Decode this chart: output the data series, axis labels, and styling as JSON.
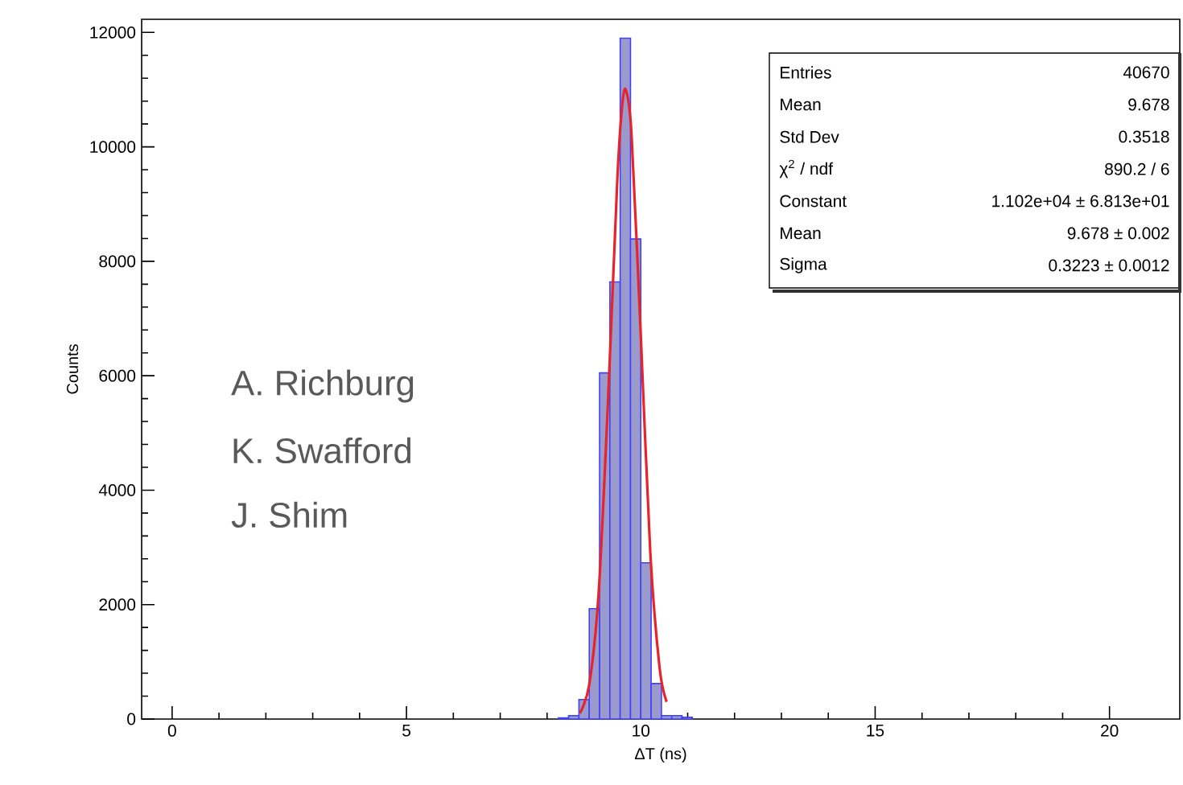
{
  "chart_data": {
    "type": "histogram",
    "xlabel": "ΔT (ns)",
    "ylabel": "Counts",
    "bins": [
      8.24,
      8.46,
      8.68,
      8.9,
      9.12,
      9.34,
      9.56,
      9.78,
      10.0,
      10.22,
      10.44,
      10.66,
      10.88,
      11.1
    ],
    "values": [
      20,
      60,
      340,
      1930,
      6050,
      7640,
      11900,
      8390,
      2730,
      620,
      60,
      60,
      30
    ],
    "color": "#9a9acc",
    "series": [
      {
        "type": "line",
        "color": "#e8242a",
        "x": [
          8.7,
          8.9,
          9.1,
          9.3,
          9.5,
          9.6,
          9.678,
          9.8,
          10.0,
          10.2,
          10.4,
          10.55
        ],
        "values": [
          100,
          600,
          2200,
          5550,
          9450,
          10700,
          11000,
          10250,
          6700,
          2950,
          900,
          300
        ]
      }
    ],
    "xlim": [
      -0.65,
      21.5
    ],
    "ylim": [
      0,
      12230
    ],
    "xticks": [
      0,
      5,
      10,
      15,
      20
    ],
    "yticks": [
      0,
      2000,
      4000,
      6000,
      8000,
      10000,
      12000
    ],
    "grid": false,
    "annotations": [
      "A. Richburg",
      "K. Swafford",
      "J. Shim",
      "Entries",
      "40670",
      "Mean",
      "9.678",
      "Std Dev",
      "0.3518",
      "χ$^{2}$ / ndf",
      "890.2 / 6",
      "Constant",
      "1.102e+04 ± 6.813e+01",
      "Mean",
      "9.678 ± 0.002",
      "Sigma",
      "0.3223 ± 0.0012"
    ]
  }
}
